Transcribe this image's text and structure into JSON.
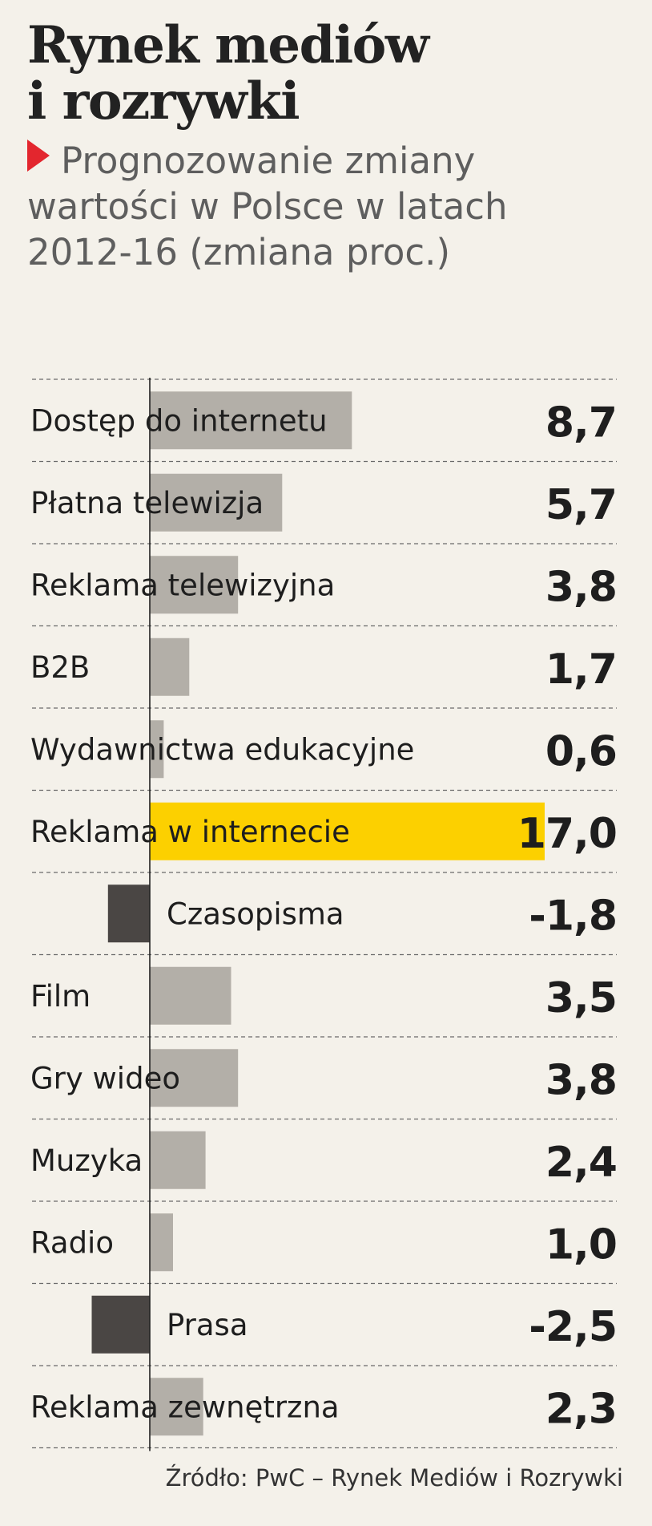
{
  "header": {
    "title_line1": "Rynek mediów",
    "title_line2": "i rozrywki",
    "subtitle": "Prognozowanie zmiany wartości w Polsce w latach 2012-16 (zmiana proc.)"
  },
  "source": "Źródło: PwC – Rynek Mediów i Rozrywki",
  "colors": {
    "background": "#f4f1ea",
    "positive_bar": "#b3afa8",
    "highlight_bar": "#fcd000",
    "negative_bar": "#4a4644",
    "accent_marker": "#e3262e",
    "text": "#1e1e1e"
  },
  "chart_data": {
    "type": "bar",
    "orientation": "horizontal",
    "title": "Rynek mediów i rozrywki",
    "subtitle": "Prognozowanie zmiany wartości w Polsce w latach 2012-16 (zmiana proc.)",
    "unit": "%",
    "categories": [
      "Dostęp do internetu",
      "Płatna telewizja",
      "Reklama telewizyjna",
      "B2B",
      "Wydawnictwa edukacyjne",
      "Reklama w internecie",
      "Czasopisma",
      "Film",
      "Gry wideo",
      "Muzyka",
      "Radio",
      "Prasa",
      "Reklama zewnętrzna"
    ],
    "values": [
      8.7,
      5.7,
      3.8,
      1.7,
      0.6,
      17.0,
      -1.8,
      3.5,
      3.8,
      2.4,
      1.0,
      -2.5,
      2.3
    ],
    "value_labels": [
      "8,7",
      "5,7",
      "3,8",
      "1,7",
      "0,6",
      "17,0",
      "-1,8",
      "3,5",
      "3,8",
      "2,4",
      "1,0",
      "-2,5",
      "2,3"
    ],
    "highlight_category": "Reklama w internecie",
    "xlim": [
      -2.5,
      17.0
    ],
    "grid": "dashed row separators",
    "legend": "none",
    "source": "Źródło: PwC – Rynek Mediów i Rozrywki"
  }
}
